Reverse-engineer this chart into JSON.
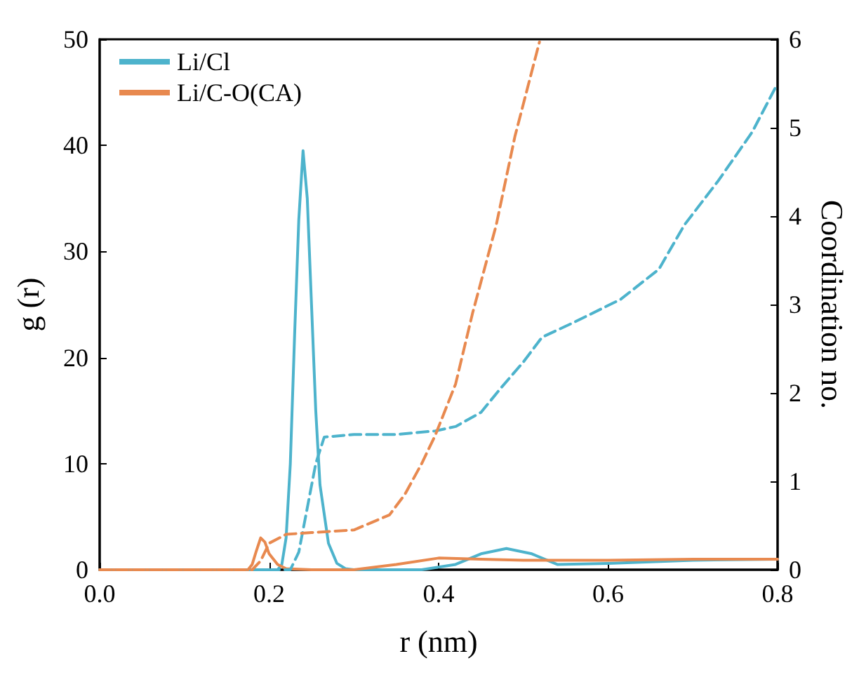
{
  "chart_data": {
    "type": "line",
    "xlabel": "r (nm)",
    "ylabel": "g (r)",
    "y2label": "Coordination no.",
    "legend": "top left",
    "marker": "none",
    "grid": false,
    "xlim": [
      0,
      0.8
    ],
    "xticks": [
      {
        "value": 0,
        "label": "0.0"
      },
      {
        "value": 0.2,
        "label": "0.2"
      },
      {
        "value": 0.4,
        "label": "0.4"
      },
      {
        "value": 0.6,
        "label": "0.6"
      },
      {
        "value": 0.8,
        "label": "0.8"
      }
    ],
    "ylim": [
      0,
      50
    ],
    "yticks": [
      0,
      10,
      20,
      30,
      40,
      50
    ],
    "y2lim": [
      0,
      6
    ],
    "y2ticks": [
      0,
      1,
      2,
      3,
      4,
      5,
      6
    ],
    "series": [
      {
        "name": "Li/Cl",
        "color": "#4db3cc",
        "line_style": "solid",
        "x": [
          0,
          0.21,
          0.215,
          0.22,
          0.225,
          0.23,
          0.235,
          0.24,
          0.245,
          0.25,
          0.255,
          0.26,
          0.27,
          0.28,
          0.29,
          0.3,
          0.38,
          0.42,
          0.45,
          0.48,
          0.51,
          0.54,
          0.6,
          0.7,
          0.8
        ],
        "values": [
          0,
          0,
          0.5,
          3,
          10,
          22,
          33,
          39.5,
          35,
          25,
          15,
          8,
          2.5,
          0.6,
          0.1,
          0,
          0,
          0.5,
          1.5,
          2,
          1.5,
          0.5,
          0.6,
          0.9,
          1
        ]
      },
      {
        "name": "Li/C-O(CA)",
        "color": "#e8894f",
        "line_style": "solid",
        "x": [
          0,
          0.175,
          0.18,
          0.185,
          0.19,
          0.195,
          0.2,
          0.21,
          0.22,
          0.25,
          0.3,
          0.35,
          0.4,
          0.45,
          0.5,
          0.6,
          0.7,
          0.8
        ],
        "values": [
          0,
          0,
          0.5,
          1.8,
          3,
          2.6,
          1.5,
          0.5,
          0.1,
          0,
          0,
          0.5,
          1.1,
          1,
          0.9,
          0.9,
          1,
          1
        ]
      },
      {
        "color": "#4db3cc",
        "line_style": "dashed",
        "axis": "y2",
        "x": [
          0,
          0.225,
          0.235,
          0.245,
          0.255,
          0.265,
          0.3,
          0.35,
          0.396,
          0.42,
          0.45,
          0.473,
          0.5,
          0.522,
          0.56,
          0.615,
          0.66,
          0.69,
          0.73,
          0.77,
          0.8
        ],
        "values": [
          0,
          0,
          0.2,
          0.7,
          1.2,
          1.5,
          1.53,
          1.53,
          1.57,
          1.62,
          1.78,
          2.05,
          2.35,
          2.63,
          2.8,
          3.06,
          3.4,
          3.9,
          4.4,
          4.95,
          5.5
        ]
      },
      {
        "color": "#e8894f",
        "line_style": "dashed",
        "axis": "y2",
        "x": [
          0,
          0.18,
          0.19,
          0.2,
          0.22,
          0.25,
          0.3,
          0.342,
          0.36,
          0.38,
          0.396,
          0.42,
          0.44,
          0.468,
          0.49,
          0.519
        ],
        "values": [
          0,
          0,
          0.1,
          0.3,
          0.4,
          0.42,
          0.45,
          0.62,
          0.85,
          1.2,
          1.52,
          2.1,
          2.9,
          3.9,
          4.9,
          5.97
        ]
      }
    ]
  }
}
